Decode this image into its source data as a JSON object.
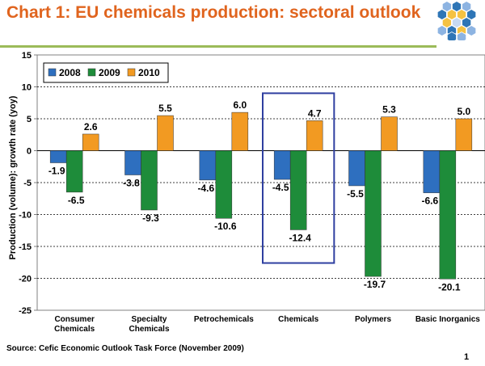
{
  "header": {
    "title": "Chart 1: EU chemicals production: sectoral outlook"
  },
  "footer": {
    "source": "Source: Cefic Economic Outlook Task Force (November 2009)",
    "page_number": "1"
  },
  "logo": {
    "icon": "hexagon-cluster-logo-icon",
    "colors": [
      "#2E75B6",
      "#8DB4E2",
      "#F5C242",
      "#C6D9F1"
    ]
  },
  "colors": {
    "2008": "#2E6FBF",
    "2009": "#1E8C3A",
    "2010": "#F29A22",
    "highlight": "#2F3FA0",
    "title": "#E0641E",
    "divider": "#9BBB59"
  },
  "chart_data": {
    "type": "bar",
    "title": "",
    "xlabel": "",
    "ylabel": "Production (volume): growth rate (yoy)",
    "ylim": [
      -25,
      15
    ],
    "yticks": [
      -25,
      -20,
      -15,
      -10,
      -5,
      0,
      5,
      10,
      15
    ],
    "grid": true,
    "legend": "top-left",
    "categories": [
      [
        "Consumer",
        "Chemicals"
      ],
      [
        "Specialty",
        "Chemicals"
      ],
      [
        "Petrochemicals"
      ],
      [
        "Chemicals"
      ],
      [
        "Polymers"
      ],
      [
        "Basic Inorganics"
      ]
    ],
    "highlight_category": "Chemicals",
    "series": [
      {
        "name": "2008",
        "values": [
          -1.9,
          -3.8,
          -4.6,
          -4.5,
          -5.5,
          -6.6
        ]
      },
      {
        "name": "2009",
        "values": [
          -6.5,
          -9.3,
          -10.6,
          -12.4,
          -19.7,
          -20.1
        ]
      },
      {
        "name": "2010",
        "values": [
          2.6,
          5.5,
          6.0,
          4.7,
          5.3,
          5.0
        ]
      }
    ]
  }
}
